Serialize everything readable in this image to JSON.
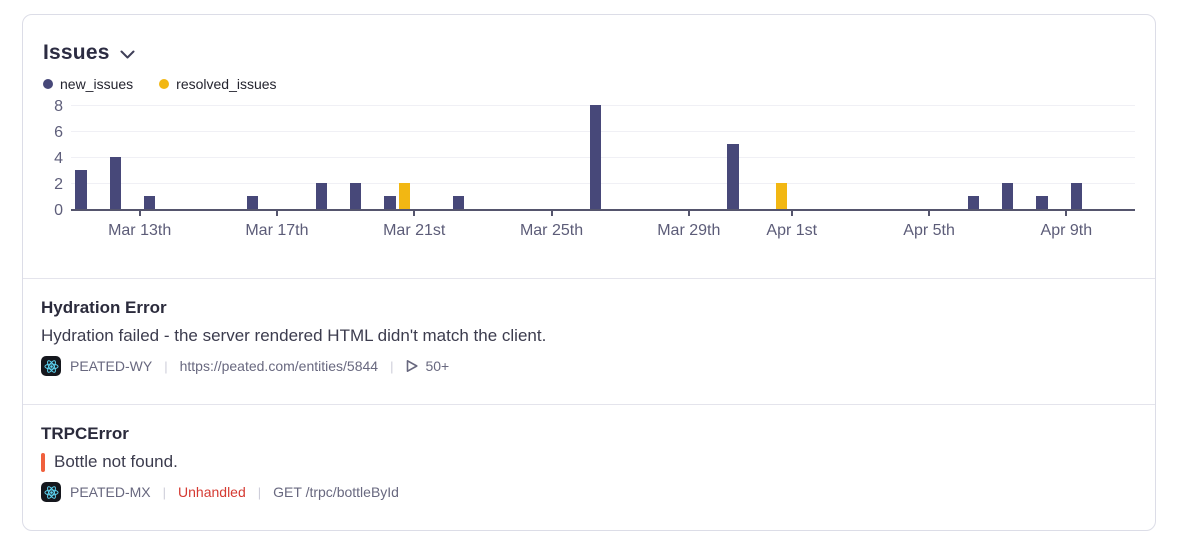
{
  "header": {
    "title": "Issues"
  },
  "ui": {
    "separator": "|"
  },
  "chart_data": {
    "type": "bar",
    "title": "Issues",
    "xlabel": "",
    "ylabel": "",
    "ylim": [
      0,
      8
    ],
    "y_ticks": [
      0,
      2,
      4,
      6,
      8
    ],
    "grid": true,
    "legend_position": "top-left",
    "x_days": [
      "Mar 11",
      "Mar 12",
      "Mar 13",
      "Mar 14",
      "Mar 15",
      "Mar 16",
      "Mar 17",
      "Mar 18",
      "Mar 19",
      "Mar 20",
      "Mar 21",
      "Mar 22",
      "Mar 23",
      "Mar 24",
      "Mar 25",
      "Mar 26",
      "Mar 27",
      "Mar 28",
      "Mar 29",
      "Mar 30",
      "Mar 31",
      "Apr 1",
      "Apr 2",
      "Apr 3",
      "Apr 4",
      "Apr 5",
      "Apr 6",
      "Apr 7",
      "Apr 8",
      "Apr 9",
      "Apr 10"
    ],
    "x_tick_labels": [
      {
        "index": 2,
        "label": "Mar 13th"
      },
      {
        "index": 6,
        "label": "Mar 17th"
      },
      {
        "index": 10,
        "label": "Mar 21st"
      },
      {
        "index": 14,
        "label": "Mar 25th"
      },
      {
        "index": 18,
        "label": "Mar 29th"
      },
      {
        "index": 21,
        "label": "Apr 1st"
      },
      {
        "index": 25,
        "label": "Apr 5th"
      },
      {
        "index": 29,
        "label": "Apr 9th"
      }
    ],
    "series": [
      {
        "name": "new_issues",
        "color": "#474879",
        "values": [
          3,
          4,
          1,
          0,
          0,
          1,
          0,
          2,
          2,
          1,
          0,
          1,
          0,
          0,
          0,
          8,
          0,
          0,
          0,
          5,
          0,
          0,
          0,
          0,
          0,
          0,
          1,
          2,
          1,
          2,
          0
        ]
      },
      {
        "name": "resolved_issues",
        "color": "#f2b713",
        "values": [
          0,
          0,
          0,
          0,
          0,
          0,
          0,
          0,
          0,
          2,
          0,
          0,
          0,
          0,
          0,
          0,
          0,
          0,
          0,
          0,
          2,
          0,
          0,
          0,
          0,
          0,
          0,
          0,
          0,
          0,
          0
        ]
      }
    ]
  },
  "issues": [
    {
      "title": "Hydration Error",
      "message": "Hydration failed - the server rendered HTML didn't match the client.",
      "project": "PEATED-WY",
      "link": "https://peated.com/entities/5844",
      "replay_count": "50+"
    },
    {
      "title": "TRPCError",
      "message": "Bottle not found.",
      "project": "PEATED-MX",
      "tag": "Unhandled",
      "endpoint": "GET /trpc/bottleById"
    }
  ]
}
